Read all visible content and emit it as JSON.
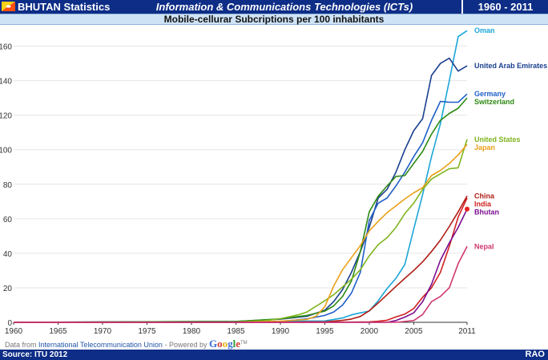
{
  "header": {
    "country_title": "BHUTAN Statistics",
    "main_title": "Information & Communications Technologies (ICTs)",
    "year_range": "1960 - 2011",
    "flag_icon": "bhutan-flag-icon"
  },
  "footer": {
    "source": "Source: ITU 2012",
    "brand": "RAO",
    "attribution_prefix": "Data from ",
    "attribution_link": "International Telecommunication Union",
    "attribution_suffix": " - Powered by ",
    "google_letters": [
      "G",
      "o",
      "o",
      "g",
      "l",
      "e"
    ],
    "google_colors": [
      "#3b6fd4",
      "#d23b2e",
      "#e8b20c",
      "#3b6fd4",
      "#2e9a3c",
      "#d23b2e"
    ],
    "trademark": "TM"
  },
  "chart_data": {
    "type": "line",
    "title": "Mobile-cellurar Subcriptions per 100 inhabitants",
    "xlabel": "",
    "ylabel": "",
    "xlim": [
      1960,
      2011
    ],
    "ylim": [
      0,
      170
    ],
    "x_ticks": [
      1960,
      1965,
      1970,
      1975,
      1980,
      1985,
      1990,
      1995,
      2000,
      2005,
      2011
    ],
    "y_ticks": [
      0,
      20,
      40,
      60,
      80,
      100,
      120,
      140,
      160
    ],
    "grid": "horizontal",
    "highlight": {
      "series": "Bhutan",
      "x": 2011,
      "y": 65.6,
      "color": "#e82020"
    },
    "series": [
      {
        "name": "Oman",
        "label_lines": [
          "Oman"
        ],
        "color": "#1aa6d8",
        "points": [
          [
            1960,
            0
          ],
          [
            1984,
            0
          ],
          [
            1985,
            0.1
          ],
          [
            1990,
            0.6
          ],
          [
            1995,
            0.8
          ],
          [
            1997,
            2.5
          ],
          [
            1998,
            4.3
          ],
          [
            1999,
            5.5
          ],
          [
            2000,
            6.5
          ],
          [
            2001,
            12.5
          ],
          [
            2002,
            19.5
          ],
          [
            2003,
            25.5
          ],
          [
            2004,
            33.5
          ],
          [
            2005,
            54
          ],
          [
            2006,
            74
          ],
          [
            2007,
            96
          ],
          [
            2008,
            115
          ],
          [
            2009,
            140
          ],
          [
            2010,
            165.5
          ],
          [
            2011,
            169
          ]
        ]
      },
      {
        "name": "United Arab Emirates",
        "label_lines": [
          "United Arab Emirates"
        ],
        "color": "#1a3f8e",
        "points": [
          [
            1960,
            0
          ],
          [
            1985,
            0.5
          ],
          [
            1990,
            1.8
          ],
          [
            1993,
            3.5
          ],
          [
            1995,
            7
          ],
          [
            1996,
            12
          ],
          [
            1997,
            19
          ],
          [
            1998,
            29
          ],
          [
            1999,
            41
          ],
          [
            2000,
            55
          ],
          [
            2001,
            72
          ],
          [
            2002,
            77
          ],
          [
            2003,
            87
          ],
          [
            2004,
            100
          ],
          [
            2005,
            111
          ],
          [
            2006,
            118
          ],
          [
            2007,
            143
          ],
          [
            2008,
            150
          ],
          [
            2009,
            153
          ],
          [
            2010,
            145.5
          ],
          [
            2011,
            148.6
          ]
        ]
      },
      {
        "name": "Germany",
        "label_lines": [
          "Germany"
        ],
        "color": "#2060c8",
        "points": [
          [
            1960,
            0
          ],
          [
            1985,
            0.1
          ],
          [
            1990,
            0.4
          ],
          [
            1993,
            2
          ],
          [
            1995,
            4
          ],
          [
            1996,
            6
          ],
          [
            1997,
            10
          ],
          [
            1998,
            17
          ],
          [
            1999,
            29
          ],
          [
            2000,
            59
          ],
          [
            2001,
            69
          ],
          [
            2002,
            72
          ],
          [
            2003,
            79
          ],
          [
            2004,
            87
          ],
          [
            2005,
            96
          ],
          [
            2006,
            104
          ],
          [
            2007,
            117
          ],
          [
            2008,
            128
          ],
          [
            2009,
            127.5
          ],
          [
            2010,
            127.5
          ],
          [
            2011,
            132.3
          ]
        ]
      },
      {
        "name": "Switzerland",
        "label_lines": [
          "Switzerland"
        ],
        "color": "#2e8a14",
        "points": [
          [
            1960,
            0
          ],
          [
            1985,
            0.5
          ],
          [
            1990,
            2
          ],
          [
            1993,
            4
          ],
          [
            1995,
            6.5
          ],
          [
            1996,
            9.5
          ],
          [
            1997,
            15
          ],
          [
            1998,
            24
          ],
          [
            1999,
            41
          ],
          [
            2000,
            64
          ],
          [
            2001,
            73
          ],
          [
            2002,
            79
          ],
          [
            2003,
            84.5
          ],
          [
            2004,
            85
          ],
          [
            2005,
            92
          ],
          [
            2006,
            99
          ],
          [
            2007,
            109
          ],
          [
            2008,
            117
          ],
          [
            2009,
            121
          ],
          [
            2010,
            124
          ],
          [
            2011,
            130
          ]
        ]
      },
      {
        "name": "United States",
        "label_lines": [
          "United States"
        ],
        "color": "#7fb41e",
        "points": [
          [
            1960,
            0
          ],
          [
            1984,
            0.1
          ],
          [
            1985,
            0.1
          ],
          [
            1988,
            0.8
          ],
          [
            1990,
            2.1
          ],
          [
            1992,
            4.3
          ],
          [
            1993,
            6
          ],
          [
            1995,
            12.5
          ],
          [
            1996,
            16
          ],
          [
            1997,
            20.5
          ],
          [
            1998,
            25
          ],
          [
            1999,
            30.5
          ],
          [
            2000,
            38.5
          ],
          [
            2001,
            45
          ],
          [
            2002,
            49
          ],
          [
            2003,
            55
          ],
          [
            2004,
            63
          ],
          [
            2005,
            69
          ],
          [
            2006,
            77
          ],
          [
            2007,
            83
          ],
          [
            2008,
            86
          ],
          [
            2009,
            89
          ],
          [
            2010,
            89.5
          ],
          [
            2011,
            106
          ]
        ]
      },
      {
        "name": "Japan",
        "label_lines": [
          "Japan"
        ],
        "color": "#eaa01a",
        "points": [
          [
            1960,
            0
          ],
          [
            1984,
            0
          ],
          [
            1990,
            0.7
          ],
          [
            1993,
            1.7
          ],
          [
            1994,
            3.5
          ],
          [
            1995,
            9
          ],
          [
            1996,
            21
          ],
          [
            1997,
            30.5
          ],
          [
            1998,
            37.5
          ],
          [
            1999,
            44.5
          ],
          [
            2000,
            53
          ],
          [
            2001,
            58.5
          ],
          [
            2002,
            63.5
          ],
          [
            2003,
            67.5
          ],
          [
            2004,
            71.5
          ],
          [
            2005,
            75
          ],
          [
            2006,
            78
          ],
          [
            2007,
            85
          ],
          [
            2008,
            88
          ],
          [
            2009,
            92
          ],
          [
            2010,
            97
          ],
          [
            2011,
            103
          ]
        ]
      },
      {
        "name": "China",
        "label_lines": [
          "China"
        ],
        "color": "#b01c14",
        "points": [
          [
            1960,
            0
          ],
          [
            1986,
            0
          ],
          [
            1990,
            0.002
          ],
          [
            1993,
            0.3
          ],
          [
            1995,
            0.3
          ],
          [
            1997,
            1.1
          ],
          [
            1998,
            1.9
          ],
          [
            1999,
            3.4
          ],
          [
            2000,
            6.7
          ],
          [
            2001,
            11.2
          ],
          [
            2002,
            16
          ],
          [
            2003,
            20.8
          ],
          [
            2004,
            25.5
          ],
          [
            2005,
            30
          ],
          [
            2006,
            35
          ],
          [
            2007,
            41
          ],
          [
            2008,
            47.6
          ],
          [
            2009,
            55.5
          ],
          [
            2010,
            64
          ],
          [
            2011,
            73.2
          ]
        ]
      },
      {
        "name": "India",
        "label_lines": [
          "India"
        ],
        "color": "#d02020",
        "points": [
          [
            1960,
            0
          ],
          [
            1995,
            0
          ],
          [
            1999,
            0.2
          ],
          [
            2000,
            0.3
          ],
          [
            2001,
            0.6
          ],
          [
            2002,
            1.2
          ],
          [
            2003,
            3.1
          ],
          [
            2004,
            4.8
          ],
          [
            2005,
            8
          ],
          [
            2006,
            14.5
          ],
          [
            2007,
            20
          ],
          [
            2008,
            29
          ],
          [
            2009,
            44
          ],
          [
            2010,
            61
          ],
          [
            2011,
            72
          ]
        ]
      },
      {
        "name": "Bhutan",
        "label_lines": [
          "Bhutan"
        ],
        "color": "#7a0e90",
        "points": [
          [
            1960,
            0
          ],
          [
            2002,
            0
          ],
          [
            2003,
            1
          ],
          [
            2004,
            3
          ],
          [
            2005,
            5.5
          ],
          [
            2006,
            12
          ],
          [
            2007,
            22
          ],
          [
            2008,
            36
          ],
          [
            2009,
            46
          ],
          [
            2010,
            55
          ],
          [
            2011,
            65.6
          ]
        ]
      },
      {
        "name": "Nepal",
        "label_lines": [
          "Nepal"
        ],
        "color": "#d03870",
        "points": [
          [
            1960,
            0
          ],
          [
            2003,
            0
          ],
          [
            2004,
            0.5
          ],
          [
            2005,
            1
          ],
          [
            2006,
            4.5
          ],
          [
            2007,
            12
          ],
          [
            2008,
            15
          ],
          [
            2009,
            20
          ],
          [
            2010,
            34
          ],
          [
            2011,
            44
          ]
        ]
      }
    ]
  }
}
